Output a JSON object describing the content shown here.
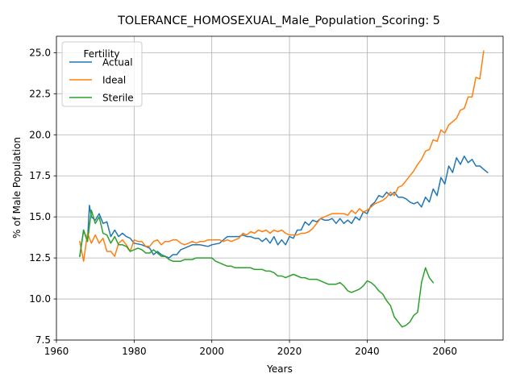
{
  "chart_data": {
    "type": "line",
    "title": "TOLERANCE_HOMOSEXUAL_Male_Population_Scoring: 5",
    "xlabel": "Years",
    "ylabel": "% of Male Population",
    "xlim": [
      1960,
      2075
    ],
    "ylim": [
      7.5,
      26.0
    ],
    "xticks": [
      1960,
      1980,
      2000,
      2020,
      2040,
      2060
    ],
    "yticks": [
      7.5,
      10.0,
      12.5,
      15.0,
      17.5,
      20.0,
      22.5,
      25.0
    ],
    "xtick_labels": [
      "1960",
      "1980",
      "2000",
      "2020",
      "2040",
      "2060"
    ],
    "ytick_labels": [
      "7.5",
      "10.0",
      "12.5",
      "15.0",
      "17.5",
      "20.0",
      "22.5",
      "25.0"
    ],
    "grid": true,
    "legend": {
      "title": "Fertility",
      "placement": "upper-left"
    },
    "series": [
      {
        "name": "Actual",
        "color": "#1f77b4",
        "points": [
          [
            1966,
            12.6
          ],
          [
            1967,
            14.2
          ],
          [
            1968,
            13.5
          ],
          [
            1968.5,
            15.7
          ],
          [
            1969,
            15.0
          ],
          [
            1970,
            14.8
          ],
          [
            1971,
            15.2
          ],
          [
            1972,
            14.6
          ],
          [
            1973,
            14.7
          ],
          [
            1974,
            13.8
          ],
          [
            1975,
            14.2
          ],
          [
            1976,
            13.8
          ],
          [
            1977,
            14.0
          ],
          [
            1978,
            13.8
          ],
          [
            1979,
            13.7
          ],
          [
            1980,
            13.4
          ],
          [
            1982,
            13.3
          ],
          [
            1984,
            13.1
          ],
          [
            1985,
            12.7
          ],
          [
            1986,
            12.9
          ],
          [
            1987,
            12.7
          ],
          [
            1988,
            12.6
          ],
          [
            1989,
            12.5
          ],
          [
            1990,
            12.7
          ],
          [
            1991,
            12.7
          ],
          [
            1992,
            13.0
          ],
          [
            1993,
            13.1
          ],
          [
            1995,
            13.3
          ],
          [
            1997,
            13.3
          ],
          [
            1999,
            13.2
          ],
          [
            2000,
            13.3
          ],
          [
            2002,
            13.4
          ],
          [
            2003,
            13.6
          ],
          [
            2004,
            13.8
          ],
          [
            2006,
            13.8
          ],
          [
            2007,
            13.8
          ],
          [
            2008,
            13.9
          ],
          [
            2009,
            13.8
          ],
          [
            2010,
            13.8
          ],
          [
            2011,
            13.7
          ],
          [
            2012,
            13.7
          ],
          [
            2013,
            13.5
          ],
          [
            2014,
            13.7
          ],
          [
            2015,
            13.4
          ],
          [
            2016,
            13.8
          ],
          [
            2017,
            13.3
          ],
          [
            2018,
            13.6
          ],
          [
            2019,
            13.3
          ],
          [
            2020,
            13.8
          ],
          [
            2021,
            13.7
          ],
          [
            2022,
            14.2
          ],
          [
            2023,
            14.2
          ],
          [
            2024,
            14.7
          ],
          [
            2025,
            14.5
          ],
          [
            2026,
            14.8
          ],
          [
            2027,
            14.7
          ],
          [
            2028,
            14.9
          ],
          [
            2029,
            14.8
          ],
          [
            2030,
            14.8
          ],
          [
            2031,
            14.9
          ],
          [
            2032,
            14.6
          ],
          [
            2033,
            14.9
          ],
          [
            2034,
            14.6
          ],
          [
            2035,
            14.8
          ],
          [
            2036,
            14.6
          ],
          [
            2037,
            15.0
          ],
          [
            2038,
            14.8
          ],
          [
            2039,
            15.3
          ],
          [
            2040,
            15.2
          ],
          [
            2041,
            15.7
          ],
          [
            2042,
            15.9
          ],
          [
            2043,
            16.3
          ],
          [
            2044,
            16.2
          ],
          [
            2045,
            16.5
          ],
          [
            2046,
            16.3
          ],
          [
            2047,
            16.5
          ],
          [
            2048,
            16.2
          ],
          [
            2049,
            16.2
          ],
          [
            2050,
            16.1
          ],
          [
            2051,
            15.9
          ],
          [
            2052,
            15.8
          ],
          [
            2053,
            15.9
          ],
          [
            2054,
            15.6
          ],
          [
            2055,
            16.2
          ],
          [
            2056,
            15.9
          ],
          [
            2057,
            16.7
          ],
          [
            2058,
            16.3
          ],
          [
            2059,
            17.4
          ],
          [
            2060,
            17.0
          ],
          [
            2061,
            18.1
          ],
          [
            2062,
            17.7
          ],
          [
            2063,
            18.6
          ],
          [
            2064,
            18.2
          ],
          [
            2065,
            18.7
          ],
          [
            2066,
            18.3
          ],
          [
            2067,
            18.5
          ],
          [
            2068,
            18.1
          ],
          [
            2069,
            18.1
          ],
          [
            2070,
            17.9
          ],
          [
            2071,
            17.7
          ]
        ]
      },
      {
        "name": "Ideal",
        "color": "#ff7f0e",
        "points": [
          [
            1966,
            13.5
          ],
          [
            1967,
            12.3
          ],
          [
            1968,
            14.0
          ],
          [
            1969,
            13.4
          ],
          [
            1970,
            13.9
          ],
          [
            1971,
            13.4
          ],
          [
            1972,
            13.7
          ],
          [
            1973,
            12.9
          ],
          [
            1974,
            12.9
          ],
          [
            1975,
            12.6
          ],
          [
            1976,
            13.4
          ],
          [
            1977,
            13.6
          ],
          [
            1978,
            13.3
          ],
          [
            1979,
            12.9
          ],
          [
            1980,
            13.6
          ],
          [
            1981,
            13.5
          ],
          [
            1982,
            13.5
          ],
          [
            1983,
            13.2
          ],
          [
            1984,
            13.2
          ],
          [
            1985,
            13.5
          ],
          [
            1986,
            13.6
          ],
          [
            1987,
            13.3
          ],
          [
            1988,
            13.5
          ],
          [
            1989,
            13.5
          ],
          [
            1990,
            13.6
          ],
          [
            1991,
            13.6
          ],
          [
            1992,
            13.4
          ],
          [
            1993,
            13.3
          ],
          [
            1994,
            13.4
          ],
          [
            1995,
            13.5
          ],
          [
            1996,
            13.4
          ],
          [
            1997,
            13.5
          ],
          [
            1998,
            13.5
          ],
          [
            1999,
            13.6
          ],
          [
            2000,
            13.6
          ],
          [
            2002,
            13.6
          ],
          [
            2003,
            13.5
          ],
          [
            2004,
            13.6
          ],
          [
            2005,
            13.5
          ],
          [
            2006,
            13.6
          ],
          [
            2007,
            13.7
          ],
          [
            2008,
            14.0
          ],
          [
            2009,
            13.9
          ],
          [
            2010,
            14.1
          ],
          [
            2011,
            14.0
          ],
          [
            2012,
            14.2
          ],
          [
            2013,
            14.1
          ],
          [
            2014,
            14.2
          ],
          [
            2015,
            14.0
          ],
          [
            2016,
            14.2
          ],
          [
            2017,
            14.1
          ],
          [
            2018,
            14.2
          ],
          [
            2019,
            14.0
          ],
          [
            2020,
            13.9
          ],
          [
            2022,
            13.9
          ],
          [
            2023,
            14.0
          ],
          [
            2024,
            14.0
          ],
          [
            2025,
            14.1
          ],
          [
            2026,
            14.3
          ],
          [
            2027,
            14.6
          ],
          [
            2028,
            14.9
          ],
          [
            2029,
            15.0
          ],
          [
            2030,
            15.1
          ],
          [
            2031,
            15.2
          ],
          [
            2033,
            15.2
          ],
          [
            2034,
            15.2
          ],
          [
            2035,
            15.1
          ],
          [
            2036,
            15.4
          ],
          [
            2037,
            15.2
          ],
          [
            2038,
            15.5
          ],
          [
            2039,
            15.3
          ],
          [
            2040,
            15.4
          ],
          [
            2041,
            15.6
          ],
          [
            2042,
            15.8
          ],
          [
            2043,
            15.9
          ],
          [
            2044,
            16.0
          ],
          [
            2045,
            16.2
          ],
          [
            2046,
            16.5
          ],
          [
            2047,
            16.3
          ],
          [
            2048,
            16.8
          ],
          [
            2049,
            16.9
          ],
          [
            2050,
            17.2
          ],
          [
            2051,
            17.5
          ],
          [
            2052,
            17.8
          ],
          [
            2053,
            18.2
          ],
          [
            2054,
            18.5
          ],
          [
            2055,
            19.0
          ],
          [
            2056,
            19.1
          ],
          [
            2057,
            19.7
          ],
          [
            2058,
            19.6
          ],
          [
            2059,
            20.3
          ],
          [
            2060,
            20.1
          ],
          [
            2061,
            20.6
          ],
          [
            2062,
            20.8
          ],
          [
            2063,
            21.0
          ],
          [
            2064,
            21.5
          ],
          [
            2065,
            21.6
          ],
          [
            2066,
            22.3
          ],
          [
            2067,
            22.3
          ],
          [
            2068,
            23.5
          ],
          [
            2069,
            23.4
          ],
          [
            2070,
            25.1
          ]
        ]
      },
      {
        "name": "Sterile",
        "color": "#2ca02c",
        "points": [
          [
            1966,
            12.6
          ],
          [
            1967,
            14.2
          ],
          [
            1968,
            13.5
          ],
          [
            1969,
            15.4
          ],
          [
            1970,
            14.6
          ],
          [
            1971,
            15.0
          ],
          [
            1972,
            14.0
          ],
          [
            1973,
            13.9
          ],
          [
            1974,
            13.4
          ],
          [
            1975,
            13.8
          ],
          [
            1976,
            13.3
          ],
          [
            1977,
            13.3
          ],
          [
            1978,
            13.2
          ],
          [
            1979,
            12.9
          ],
          [
            1980,
            13.0
          ],
          [
            1981,
            13.1
          ],
          [
            1982,
            13.0
          ],
          [
            1983,
            12.8
          ],
          [
            1984,
            12.8
          ],
          [
            1985,
            13.0
          ],
          [
            1986,
            12.8
          ],
          [
            1987,
            12.6
          ],
          [
            1988,
            12.6
          ],
          [
            1989,
            12.4
          ],
          [
            1990,
            12.3
          ],
          [
            1991,
            12.3
          ],
          [
            1992,
            12.3
          ],
          [
            1993,
            12.4
          ],
          [
            1994,
            12.4
          ],
          [
            1995,
            12.4
          ],
          [
            1996,
            12.5
          ],
          [
            1997,
            12.5
          ],
          [
            1998,
            12.5
          ],
          [
            1999,
            12.5
          ],
          [
            2000,
            12.5
          ],
          [
            2001,
            12.3
          ],
          [
            2002,
            12.2
          ],
          [
            2003,
            12.1
          ],
          [
            2004,
            12.0
          ],
          [
            2005,
            12.0
          ],
          [
            2006,
            11.9
          ],
          [
            2007,
            11.9
          ],
          [
            2008,
            11.9
          ],
          [
            2009,
            11.9
          ],
          [
            2010,
            11.9
          ],
          [
            2011,
            11.8
          ],
          [
            2012,
            11.8
          ],
          [
            2013,
            11.8
          ],
          [
            2014,
            11.7
          ],
          [
            2015,
            11.7
          ],
          [
            2016,
            11.6
          ],
          [
            2017,
            11.4
          ],
          [
            2018,
            11.4
          ],
          [
            2019,
            11.3
          ],
          [
            2020,
            11.4
          ],
          [
            2021,
            11.5
          ],
          [
            2022,
            11.4
          ],
          [
            2023,
            11.3
          ],
          [
            2024,
            11.3
          ],
          [
            2025,
            11.2
          ],
          [
            2026,
            11.2
          ],
          [
            2027,
            11.2
          ],
          [
            2028,
            11.1
          ],
          [
            2029,
            11.0
          ],
          [
            2030,
            10.9
          ],
          [
            2031,
            10.9
          ],
          [
            2032,
            10.9
          ],
          [
            2033,
            11.0
          ],
          [
            2034,
            10.8
          ],
          [
            2035,
            10.5
          ],
          [
            2036,
            10.4
          ],
          [
            2037,
            10.5
          ],
          [
            2038,
            10.6
          ],
          [
            2039,
            10.8
          ],
          [
            2040,
            11.1
          ],
          [
            2041,
            11.0
          ],
          [
            2042,
            10.8
          ],
          [
            2043,
            10.5
          ],
          [
            2044,
            10.3
          ],
          [
            2045,
            9.9
          ],
          [
            2046,
            9.6
          ],
          [
            2047,
            8.9
          ],
          [
            2048,
            8.6
          ],
          [
            2049,
            8.3
          ],
          [
            2050,
            8.4
          ],
          [
            2051,
            8.6
          ],
          [
            2052,
            9.0
          ],
          [
            2053,
            9.2
          ],
          [
            2054,
            11.0
          ],
          [
            2055,
            11.9
          ],
          [
            2056,
            11.3
          ],
          [
            2057,
            11.0
          ]
        ]
      }
    ]
  }
}
